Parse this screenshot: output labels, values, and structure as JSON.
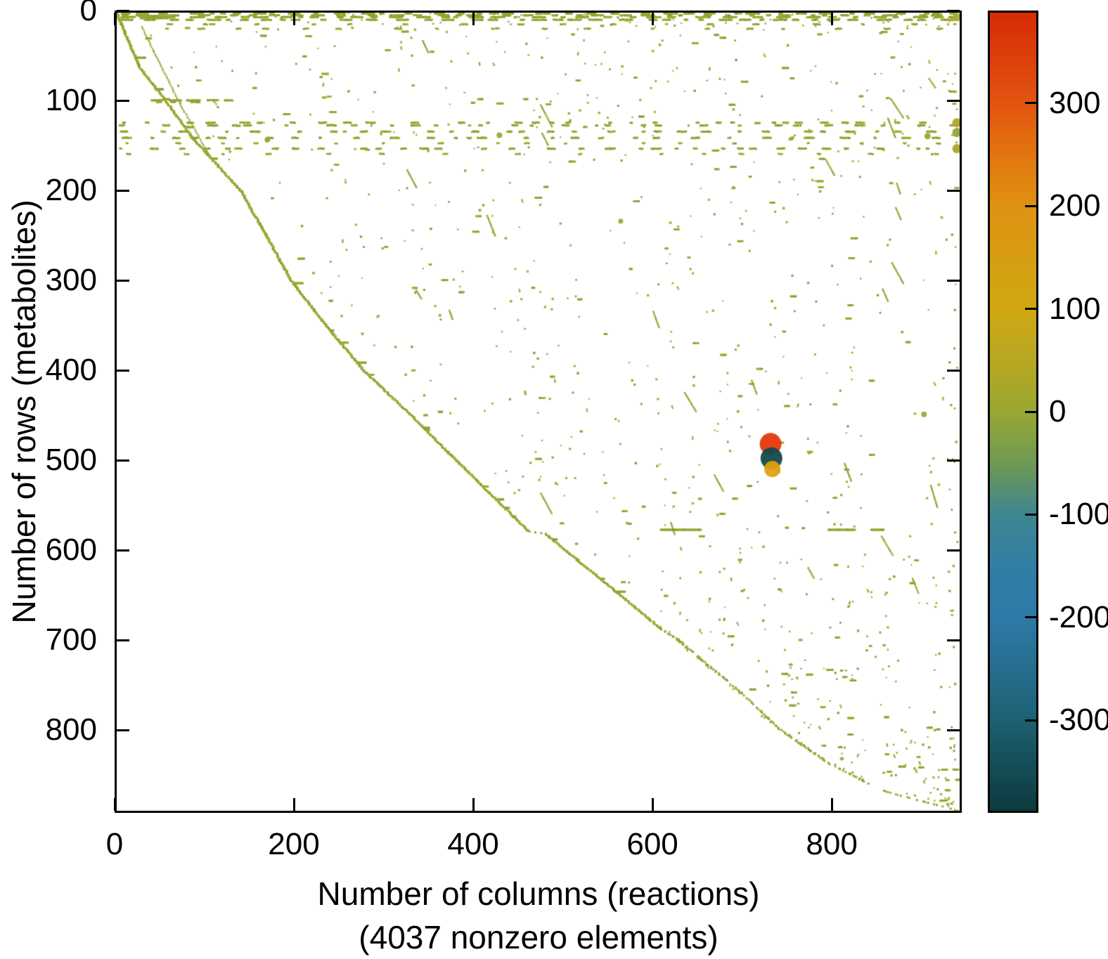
{
  "figure": {
    "kind": "matrix sparsity pattern (spy) plot with colorbar",
    "background": "#ffffff",
    "axis_color": "#000000"
  },
  "chart_data": {
    "type": "scatter",
    "subtype": "sparsity-pattern-spy-plot",
    "title": "",
    "xlabel": "Number of columns (reactions)",
    "xlabel_line2": "(4037 nonzero elements)",
    "ylabel": "Number of rows (metabolites)",
    "nonzero_elements": 4037,
    "x_range": [
      0,
      945
    ],
    "y_range": [
      0,
      892
    ],
    "y_axis_direction": "reversed (row 0 at top)",
    "x_ticks": [
      0,
      200,
      400,
      600,
      800
    ],
    "y_ticks": [
      0,
      100,
      200,
      300,
      400,
      500,
      600,
      700,
      800
    ],
    "grid": false,
    "legend": false,
    "base_marker_color": "#9DA832",
    "marker_color_variants": [
      "#9DA832",
      "#A4B03A",
      "#93A22D",
      "#8C9C2F"
    ],
    "colorbar": {
      "position": "right",
      "value_min": -390,
      "value_max": 390,
      "ticks": [
        300,
        200,
        100,
        0,
        -100,
        -200,
        -300
      ],
      "gradient_top_to_bottom": [
        {
          "p": 0.0,
          "c": "#D62B06"
        },
        {
          "p": 0.115,
          "c": "#E25510"
        },
        {
          "p": 0.175,
          "c": "#E27410"
        },
        {
          "p": 0.244,
          "c": "#DF9212"
        },
        {
          "p": 0.372,
          "c": "#CFA813"
        },
        {
          "p": 0.44,
          "c": "#B5A723"
        },
        {
          "p": 0.5,
          "c": "#9AA733"
        },
        {
          "p": 0.57,
          "c": "#6B9857"
        },
        {
          "p": 0.628,
          "c": "#3E8691"
        },
        {
          "p": 0.7,
          "c": "#2F7EA6"
        },
        {
          "p": 0.756,
          "c": "#2D7AA9"
        },
        {
          "p": 0.885,
          "c": "#1D6173"
        },
        {
          "p": 1.0,
          "c": "#0C3A3E"
        }
      ]
    },
    "notable_points": [
      {
        "col": 943,
        "row": 5,
        "approx_value": 30,
        "color": "#A9A92E",
        "radius_px": 6
      },
      {
        "col": 943,
        "row": 123,
        "approx_value": 25,
        "color": "#B0A42A",
        "radius_px": 6.5
      },
      {
        "col": 943,
        "row": 134,
        "approx_value": 5,
        "color": "#8FA53C",
        "radius_px": 6.5
      },
      {
        "col": 943,
        "row": 152,
        "approx_value": 25,
        "color": "#ADA42C",
        "radius_px": 6.5
      },
      {
        "col": 909,
        "row": 138,
        "approx_value": 10,
        "color": "#9DA832",
        "radius_px": 4.5
      },
      {
        "col": 905,
        "row": 449,
        "approx_value": 10,
        "color": "#9DA832",
        "radius_px": 4
      },
      {
        "col": 429,
        "row": 137,
        "approx_value": 8,
        "color": "#9DA832",
        "radius_px": 4
      },
      {
        "col": 169,
        "row": 142,
        "approx_value": 8,
        "color": "#9DA832",
        "radius_px": 4
      },
      {
        "col": 565,
        "row": 233,
        "approx_value": 8,
        "color": "#9DA832",
        "radius_px": 3.5
      },
      {
        "col": 733,
        "row": 482,
        "approx_value": 380,
        "color": "#E5380C",
        "radius_px": 15.5
      },
      {
        "col": 734,
        "row": 498,
        "approx_value": -380,
        "color": "#134A4C",
        "radius_px": 15.5
      },
      {
        "col": 735,
        "row": 510,
        "approx_value": 170,
        "color": "#DFA013",
        "radius_px": 11.5
      }
    ],
    "pattern": {
      "description": "Lower-triangular staircase diagonal from (0,0) to (945,892); dense dashed rows at top (rows 1-8) and horizontal dashed bands near rows 123-152; sparse scatter above the diagonal; empty below it.",
      "seed": 42,
      "diagonal_waypoints": [
        [
          0,
          0
        ],
        [
          60,
          25
        ],
        [
          100,
          56
        ],
        [
          140,
          85
        ],
        [
          200,
          140
        ],
        [
          250,
          168
        ],
        [
          300,
          196
        ],
        [
          350,
          235
        ],
        [
          400,
          277
        ],
        [
          450,
          330
        ],
        [
          488,
          368
        ],
        [
          580,
          462
        ],
        [
          582,
          480
        ],
        [
          690,
          612
        ],
        [
          700,
          628
        ],
        [
          760,
          700
        ],
        [
          800,
          742
        ],
        [
          840,
          800
        ],
        [
          870,
          860
        ],
        [
          892,
          943
        ]
      ],
      "diagonal_dotted_after_row": 690,
      "top_band_rows": [
        1,
        3,
        5,
        8
      ],
      "sparse_top_rows": [
        13,
        18
      ],
      "mid_band_rows": [
        123,
        126,
        133,
        140,
        152
      ],
      "sparse_mid_rows": [
        146,
        158
      ],
      "jog_band": {
        "row": 98,
        "c0": 35,
        "c1": 130
      },
      "solid_segment": {
        "r0": 4,
        "r1": 6,
        "c0": 27,
        "c1": 58
      },
      "extra_dashes": [
        [
          578,
          610,
          655
        ],
        [
          578,
          798,
          828
        ],
        [
          578,
          846,
          860
        ]
      ],
      "dotted_diagonals": [
        {
          "r0": 16,
          "r1": 100,
          "c0": 28,
          "c1": 70
        },
        {
          "r0": 100,
          "r1": 162,
          "c0": 70,
          "c1": 105
        }
      ],
      "dotted_runs_count": 26,
      "scatter_count": 900,
      "edge_column_count": 30
    }
  }
}
